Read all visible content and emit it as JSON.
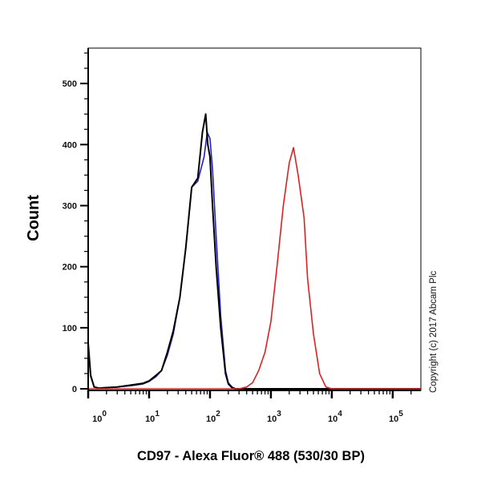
{
  "chart_data": {
    "type": "line",
    "title": "",
    "xlabel": "CD97 - Alexa Fluor® 488 (530/30 BP)",
    "ylabel": "Count",
    "x_scale": "log",
    "xlim": [
      1,
      290000
    ],
    "ylim": [
      0,
      558
    ],
    "y_ticks": [
      0,
      100,
      200,
      300,
      400,
      500
    ],
    "x_ticks": [
      {
        "base": "10",
        "exp": "0",
        "value": 1
      },
      {
        "base": "10",
        "exp": "1",
        "value": 10
      },
      {
        "base": "10",
        "exp": "2",
        "value": 100
      },
      {
        "base": "10",
        "exp": "3",
        "value": 1000
      },
      {
        "base": "10",
        "exp": "4",
        "value": 10000
      },
      {
        "base": "10",
        "exp": "5",
        "value": 100000
      }
    ],
    "grid": false,
    "legend": "none",
    "annotation": "Copyright (c) 2017 Abcam Plc",
    "series": [
      {
        "color": "#2020d0",
        "x": [
          1,
          1.1,
          1.25,
          1.5,
          2,
          3,
          5,
          8,
          10,
          13,
          16,
          20,
          25,
          32,
          40,
          50,
          63,
          80,
          90,
          100,
          110,
          126,
          150,
          180,
          200,
          230,
          260,
          300,
          1000,
          10000,
          290000
        ],
        "y": [
          70,
          20,
          3,
          1,
          2,
          3,
          5,
          8,
          12,
          20,
          30,
          55,
          90,
          150,
          230,
          330,
          340,
          380,
          420,
          410,
          360,
          250,
          120,
          30,
          10,
          3,
          0,
          0,
          0,
          0,
          0
        ]
      },
      {
        "color": "#000000",
        "x": [
          1,
          1.1,
          1.25,
          1.5,
          2,
          3,
          5,
          8,
          10,
          13,
          16,
          20,
          25,
          32,
          40,
          50,
          63,
          75,
          85,
          92,
          100,
          110,
          126,
          150,
          180,
          200,
          230,
          260,
          300,
          1000,
          10000,
          290000
        ],
        "y": [
          75,
          22,
          3,
          1,
          2,
          3,
          6,
          9,
          13,
          22,
          30,
          60,
          95,
          150,
          230,
          330,
          345,
          420,
          450,
          400,
          380,
          300,
          200,
          100,
          25,
          8,
          2,
          0,
          0,
          0,
          0,
          0
        ]
      },
      {
        "color": "#e02020",
        "x": [
          1,
          100,
          300,
          400,
          500,
          630,
          800,
          1000,
          1260,
          1600,
          2000,
          2350,
          2800,
          3500,
          4000,
          5000,
          6300,
          8000,
          10000,
          290000
        ],
        "y": [
          0,
          0,
          0,
          3,
          10,
          30,
          60,
          110,
          200,
          300,
          370,
          395,
          350,
          280,
          180,
          90,
          25,
          3,
          0,
          0
        ]
      }
    ]
  }
}
